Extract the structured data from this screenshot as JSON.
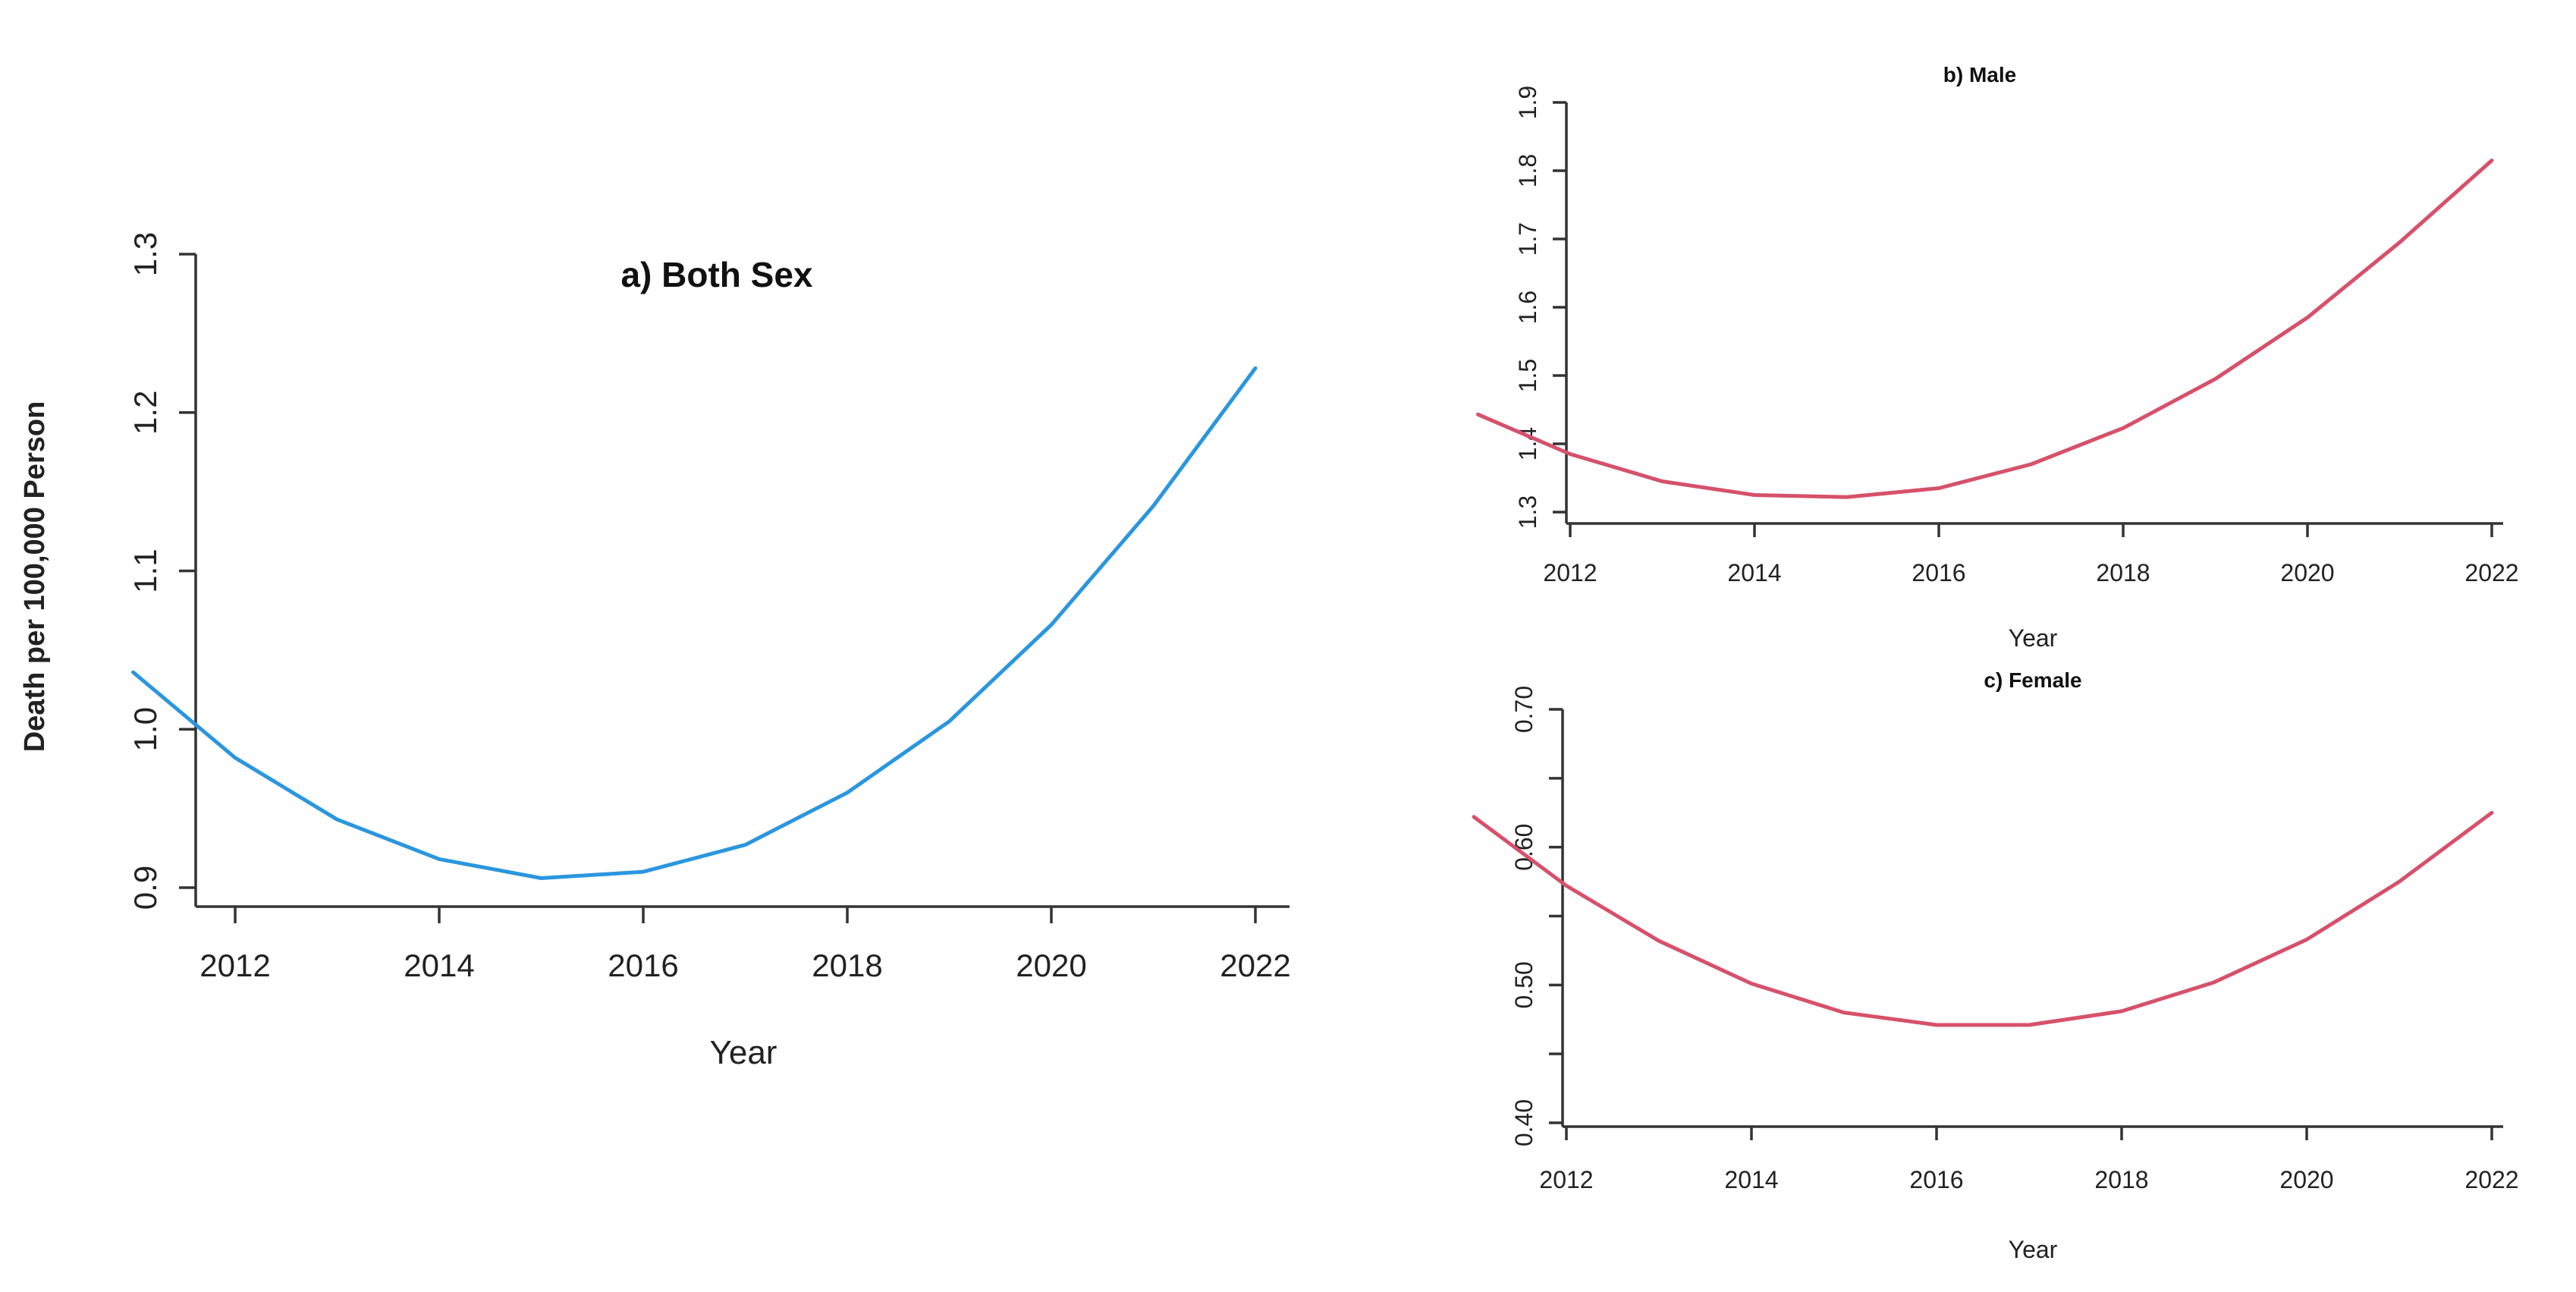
{
  "chart_data": [
    {
      "panel": "a",
      "type": "line",
      "title": "a) Both Sex",
      "xlabel": "Year",
      "ylabel": "Death per 100,000 Person",
      "xlim": [
        2010.8,
        2022.5
      ],
      "ylim": [
        0.88,
        1.32
      ],
      "xticks": [
        2012,
        2014,
        2016,
        2018,
        2020,
        2022
      ],
      "xtick_labels": [
        "2012",
        "2014",
        "2016",
        "2018",
        "2020",
        "2022"
      ],
      "yticks": [
        0.9,
        1.0,
        1.1,
        1.2,
        1.3
      ],
      "ytick_labels": [
        "0.9",
        "1.0",
        "1.1",
        "1.2",
        "1.3"
      ],
      "grid": false,
      "color": "#2B96DE",
      "x": [
        2011,
        2012,
        2013,
        2014,
        2015,
        2016,
        2017,
        2018,
        2019,
        2020,
        2021,
        2022
      ],
      "y": [
        1.036,
        0.982,
        0.943,
        0.918,
        0.906,
        0.91,
        0.927,
        0.96,
        1.005,
        1.066,
        1.141,
        1.228
      ]
    },
    {
      "panel": "b",
      "type": "line",
      "title": "b) Male",
      "xlabel": "Year",
      "ylabel": "",
      "xlim": [
        2010.6,
        2022.6
      ],
      "ylim": [
        1.28,
        1.92
      ],
      "xticks": [
        2012,
        2014,
        2016,
        2018,
        2020,
        2022
      ],
      "xtick_labels": [
        "2012",
        "2014",
        "2016",
        "2018",
        "2020",
        "2022"
      ],
      "yticks": [
        1.3,
        1.4,
        1.5,
        1.6,
        1.7,
        1.8,
        1.9
      ],
      "ytick_labels": [
        "1.3",
        "1.4",
        "1.5",
        "1.6",
        "1.7",
        "1.8",
        "1.9"
      ],
      "grid": false,
      "color": "#D6516A",
      "x": [
        2011,
        2012,
        2013,
        2014,
        2015,
        2016,
        2017,
        2018,
        2019,
        2020,
        2021,
        2022
      ],
      "y": [
        1.443,
        1.385,
        1.345,
        1.325,
        1.322,
        1.335,
        1.37,
        1.423,
        1.495,
        1.585,
        1.695,
        1.815
      ]
    },
    {
      "panel": "c",
      "type": "line",
      "title": "c) Female",
      "xlabel": "Year",
      "ylabel": "",
      "xlim": [
        2010.6,
        2022.6
      ],
      "ylim": [
        0.39,
        0.71
      ],
      "xticks": [
        2012,
        2014,
        2016,
        2018,
        2020,
        2022
      ],
      "xtick_labels": [
        "2012",
        "2014",
        "2016",
        "2018",
        "2020",
        "2022"
      ],
      "yticks": [
        0.4,
        0.45,
        0.5,
        0.55,
        0.6,
        0.65,
        0.7
      ],
      "ytick_labels": [
        "0.40",
        "",
        "0.50",
        "",
        "0.60",
        "",
        "0.70"
      ],
      "grid": false,
      "color": "#D6516A",
      "x": [
        2011,
        2012,
        2013,
        2014,
        2015,
        2016,
        2017,
        2018,
        2019,
        2020,
        2021,
        2022
      ],
      "y": [
        0.622,
        0.572,
        0.532,
        0.501,
        0.48,
        0.471,
        0.471,
        0.481,
        0.502,
        0.533,
        0.575,
        0.625
      ]
    }
  ]
}
